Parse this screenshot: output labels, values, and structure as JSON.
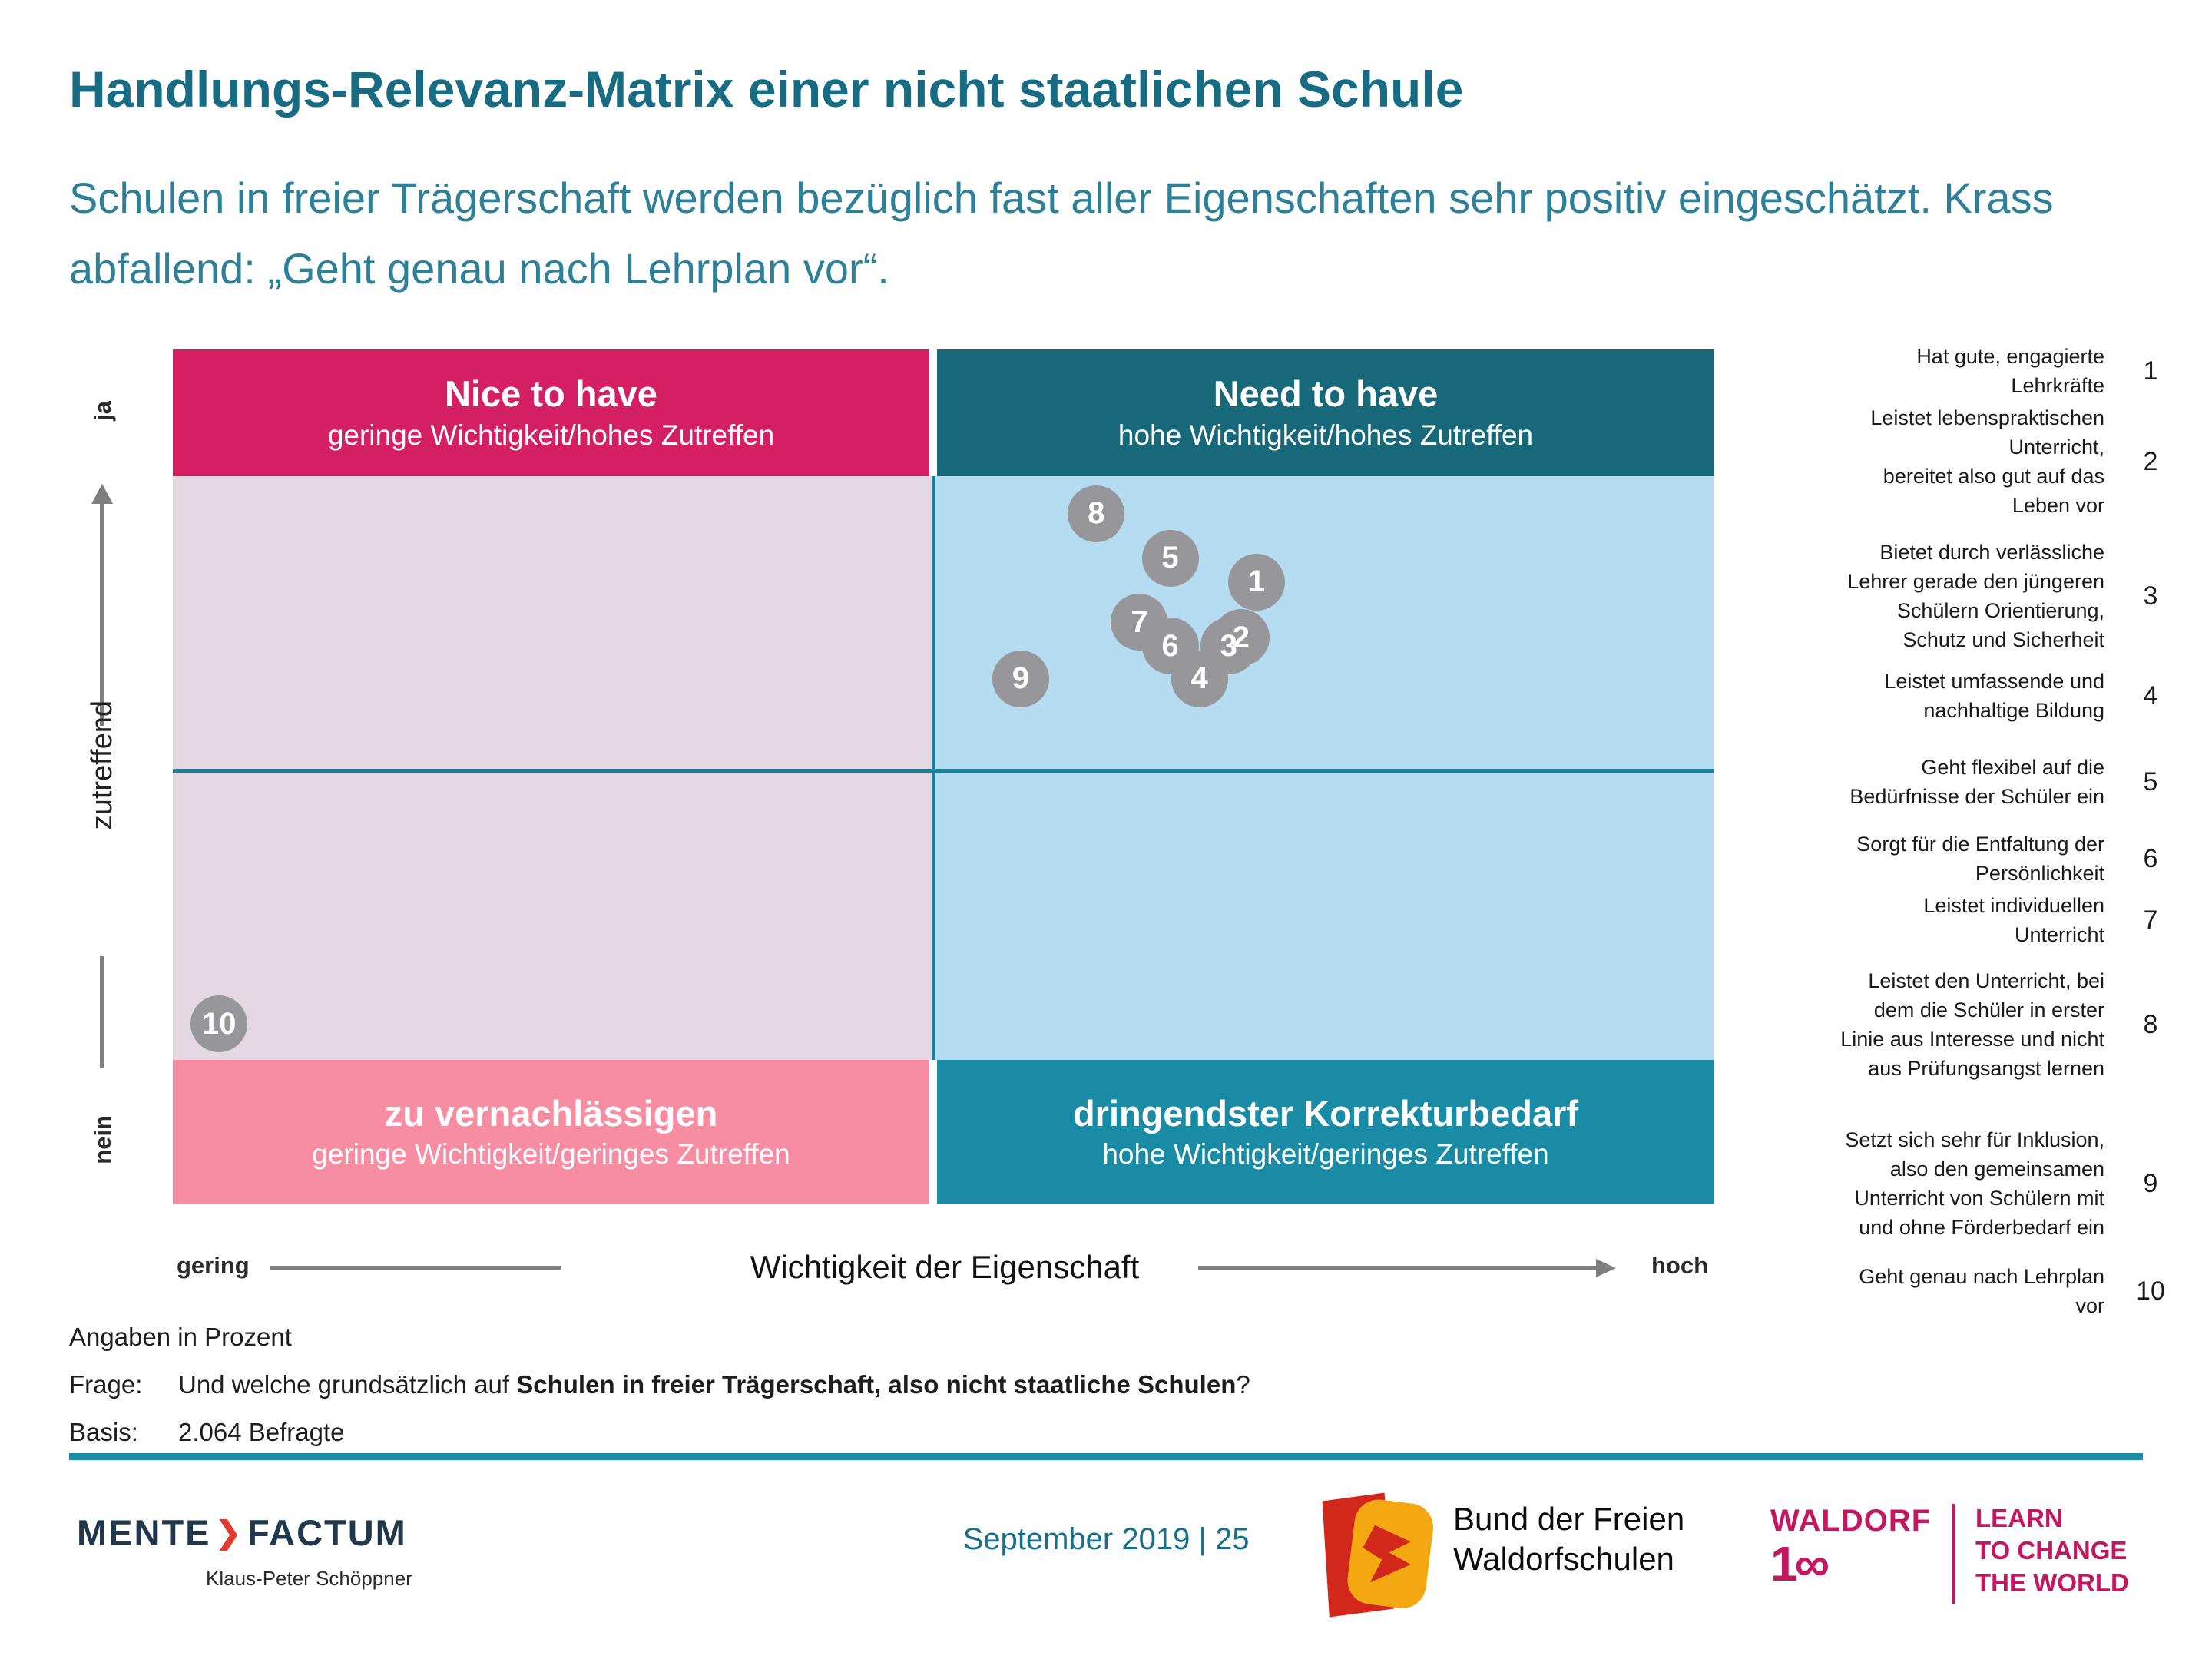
{
  "slide": {
    "title": "Handlungs-Relevanz-Matrix einer nicht staatlichen Schule",
    "subtitle": "Schulen in freier Trägerschaft werden bezüglich fast aller Eigenschaften sehr positiv eingeschätzt. Krass abfallend: „Geht genau nach Lehrplan vor“."
  },
  "quadrants": {
    "top_left": {
      "title": "Nice to have",
      "subtitle": "geringe Wichtigkeit/hohes Zutreffen"
    },
    "top_right": {
      "title": "Need to have",
      "subtitle": "hohe Wichtigkeit/hohes  Zutreffen"
    },
    "bottom_left": {
      "title": "zu vernachlässigen",
      "subtitle": "geringe Wichtigkeit/geringes Zutreffen"
    },
    "bottom_right": {
      "title": "dringendster Korrekturbedarf",
      "subtitle": "hohe Wichtigkeit/geringes Zutreffen"
    }
  },
  "axes": {
    "y_top": "ja",
    "y_label": "zutreffend",
    "y_bottom": "nein",
    "x_left": "gering",
    "x_label": "Wichtigkeit der Eigenschaft",
    "x_right": "hoch"
  },
  "chart_data": {
    "type": "scatter",
    "title": "Handlungs-Relevanz-Matrix einer nicht staatlichen Schule",
    "x_axis": {
      "label": "Wichtigkeit der Eigenschaft",
      "min_label": "gering",
      "max_label": "hoch"
    },
    "y_axis": {
      "label": "zutreffend",
      "min_label": "nein",
      "max_label": "ja"
    },
    "quadrant_labels": [
      "Nice to have",
      "Need to have",
      "zu vernachlässigen",
      "dringendster Korrekturbedarf"
    ],
    "note": "Angaben in Prozent",
    "points": [
      {
        "id": 1,
        "label": "Hat gute, engagierte Lehrkräfte",
        "x_pct": 70.3,
        "y_pct": 72.8
      },
      {
        "id": 2,
        "label": "Leistet lebenspraktischen Unterricht, bereitet also gut auf das Leben vor",
        "x_pct": 69.3,
        "y_pct": 66.3
      },
      {
        "id": 3,
        "label": "Bietet durch verlässliche Lehrer gerade den jüngeren Schülern Orientierung, Schutz und Sicherheit",
        "x_pct": 68.5,
        "y_pct": 65.3
      },
      {
        "id": 4,
        "label": "Leistet umfassende und nachhaltige Bildung",
        "x_pct": 66.6,
        "y_pct": 61.5
      },
      {
        "id": 5,
        "label": "Geht flexibel auf die Bedürfnisse der Schüler ein",
        "x_pct": 64.7,
        "y_pct": 75.6
      },
      {
        "id": 6,
        "label": "Sorgt für die Entfaltung der Persönlichkeit",
        "x_pct": 64.7,
        "y_pct": 65.3
      },
      {
        "id": 7,
        "label": "Leistet individuellen Unterricht",
        "x_pct": 62.7,
        "y_pct": 68.1
      },
      {
        "id": 8,
        "label": "Leistet den Unterricht, bei dem die Schüler in erster Linie aus Interesse und nicht aus Prüfungsangst lernen",
        "x_pct": 59.9,
        "y_pct": 80.8
      },
      {
        "id": 9,
        "label": "Setzt sich sehr für Inklusion, also den gemeinsamen Unterricht von Schülern mit und ohne Förderbedarf ein",
        "x_pct": 55.0,
        "y_pct": 61.5
      },
      {
        "id": 10,
        "label": "Geht genau nach Lehrplan vor",
        "x_pct": 3.0,
        "y_pct": 21.1
      }
    ]
  },
  "legend": {
    "items": [
      {
        "num": "1",
        "text": "Hat gute, engagierte\nLehrkräfte"
      },
      {
        "num": "2",
        "text": "Leistet lebenspraktischen\nUnterricht,\nbereitet also gut auf das\nLeben vor"
      },
      {
        "num": "3",
        "text": "Bietet durch verlässliche\nLehrer gerade den jüngeren\nSchülern Orientierung,\nSchutz und Sicherheit"
      },
      {
        "num": "4",
        "text": "Leistet umfassende und\nnachhaltige Bildung"
      },
      {
        "num": "5",
        "text": "Geht flexibel auf die\nBedürfnisse der Schüler ein"
      },
      {
        "num": "6",
        "text": "Sorgt für die Entfaltung der\nPersönlichkeit"
      },
      {
        "num": "7",
        "text": "Leistet individuellen\nUnterricht"
      },
      {
        "num": "8",
        "text": "Leistet den Unterricht, bei\ndem die Schüler in erster\nLinie aus Interesse und nicht\naus Prüfungsangst lernen"
      },
      {
        "num": "9",
        "text": "Setzt sich sehr für Inklusion,\nalso den gemeinsamen\nUnterricht von Schülern mit\nund ohne Förderbedarf ein"
      },
      {
        "num": "10",
        "text": "Geht genau nach Lehrplan\nvor"
      }
    ]
  },
  "notes": {
    "unit": "Angaben in Prozent",
    "frage_label": "Frage:",
    "frage_prefix": "Und welche grundsätzlich auf ",
    "frage_bold": "Schulen in freier Trägerschaft, also nicht staatliche Schulen",
    "frage_suffix": "?",
    "basis_label": "Basis:",
    "basis_value": "2.064 Befragte"
  },
  "footer": {
    "brand_part1": "MENTE",
    "brand_chevron": "❯",
    "brand_part2": "FACTUM",
    "brand_credit": "Klaus-Peter Schöppner",
    "date_page": "September 2019 | 25",
    "bund_name": "Bund der Freien\nWaldorfschulen",
    "waldorf_word": "WALDORF",
    "waldorf_num": "1∞",
    "waldorf_tagline": "LEARN\nTO CHANGE\nTHE WORLD"
  },
  "colors": {
    "title_teal": "#176C84",
    "subtitle_teal": "#2E7F98",
    "header_pink": "#D41F63",
    "header_teal_dark": "#176878",
    "header_teal_bright": "#1A8BA4",
    "header_pink_light": "#F68DA2",
    "fill_lavender": "#E4D8E3",
    "fill_lightblue": "#B5DCF0",
    "midline_teal": "#0F84A0",
    "circle_gray": "#97979B",
    "rule_teal": "#1A8CA6",
    "waldorf_magenta": "#C31760",
    "mente_navy": "#21374B",
    "mente_red": "#E23B30"
  }
}
